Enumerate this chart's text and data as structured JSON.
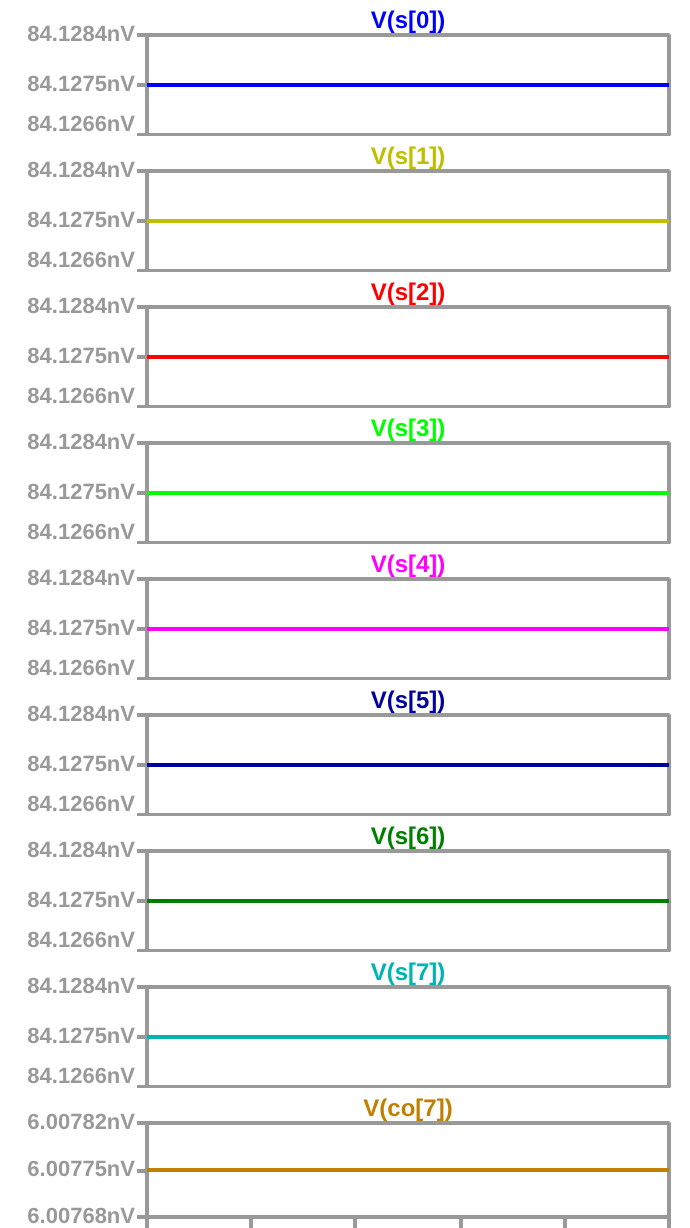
{
  "chart_data": [
    {
      "type": "line",
      "title": "V(s[0])",
      "categories": [
        null,
        null,
        null,
        null,
        null,
        null
      ],
      "ylim": [
        84.1266,
        84.1284
      ],
      "yticks": [
        {
          "value": 84.1266,
          "label": "84.1266nV"
        },
        {
          "value": 84.1275,
          "label": "84.1275nV"
        },
        {
          "value": 84.1284,
          "label": "84.1284nV"
        }
      ],
      "tick_labels": "y",
      "series": [
        {
          "color": "#0000ff",
          "values": [
            84.1275,
            84.1275,
            84.1275,
            84.1275,
            84.1275,
            84.1275
          ]
        }
      ]
    },
    {
      "type": "line",
      "title": "V(s[1])",
      "categories": [
        null,
        null,
        null,
        null,
        null,
        null
      ],
      "ylim": [
        84.1266,
        84.1284
      ],
      "yticks": [
        {
          "value": 84.1266,
          "label": "84.1266nV"
        },
        {
          "value": 84.1275,
          "label": "84.1275nV"
        },
        {
          "value": 84.1284,
          "label": "84.1284nV"
        }
      ],
      "tick_labels": "y",
      "series": [
        {
          "color": "#bfbf00",
          "values": [
            84.1275,
            84.1275,
            84.1275,
            84.1275,
            84.1275,
            84.1275
          ]
        }
      ]
    },
    {
      "type": "line",
      "title": "V(s[2])",
      "categories": [
        null,
        null,
        null,
        null,
        null,
        null
      ],
      "ylim": [
        84.1266,
        84.1284
      ],
      "yticks": [
        {
          "value": 84.1266,
          "label": "84.1266nV"
        },
        {
          "value": 84.1275,
          "label": "84.1275nV"
        },
        {
          "value": 84.1284,
          "label": "84.1284nV"
        }
      ],
      "tick_labels": "y",
      "series": [
        {
          "color": "#ff0000",
          "values": [
            84.1275,
            84.1275,
            84.1275,
            84.1275,
            84.1275,
            84.1275
          ]
        }
      ]
    },
    {
      "type": "line",
      "title": "V(s[3])",
      "categories": [
        null,
        null,
        null,
        null,
        null,
        null
      ],
      "ylim": [
        84.1266,
        84.1284
      ],
      "yticks": [
        {
          "value": 84.1266,
          "label": "84.1266nV"
        },
        {
          "value": 84.1275,
          "label": "84.1275nV"
        },
        {
          "value": 84.1284,
          "label": "84.1284nV"
        }
      ],
      "tick_labels": "y",
      "series": [
        {
          "color": "#00ff00",
          "values": [
            84.1275,
            84.1275,
            84.1275,
            84.1275,
            84.1275,
            84.1275
          ]
        }
      ]
    },
    {
      "type": "line",
      "title": "V(s[4])",
      "categories": [
        null,
        null,
        null,
        null,
        null,
        null
      ],
      "ylim": [
        84.1266,
        84.1284
      ],
      "yticks": [
        {
          "value": 84.1266,
          "label": "84.1266nV"
        },
        {
          "value": 84.1275,
          "label": "84.1275nV"
        },
        {
          "value": 84.1284,
          "label": "84.1284nV"
        }
      ],
      "tick_labels": "y",
      "series": [
        {
          "color": "#ff00ff",
          "values": [
            84.1275,
            84.1275,
            84.1275,
            84.1275,
            84.1275,
            84.1275
          ]
        }
      ]
    },
    {
      "type": "line",
      "title": "V(s[5])",
      "categories": [
        null,
        null,
        null,
        null,
        null,
        null
      ],
      "ylim": [
        84.1266,
        84.1284
      ],
      "yticks": [
        {
          "value": 84.1266,
          "label": "84.1266nV"
        },
        {
          "value": 84.1275,
          "label": "84.1275nV"
        },
        {
          "value": 84.1284,
          "label": "84.1284nV"
        }
      ],
      "tick_labels": "y",
      "series": [
        {
          "color": "#0000a0",
          "values": [
            84.1275,
            84.1275,
            84.1275,
            84.1275,
            84.1275,
            84.1275
          ]
        }
      ]
    },
    {
      "type": "line",
      "title": "V(s[6])",
      "categories": [
        null,
        null,
        null,
        null,
        null,
        null
      ],
      "ylim": [
        84.1266,
        84.1284
      ],
      "yticks": [
        {
          "value": 84.1266,
          "label": "84.1266nV"
        },
        {
          "value": 84.1275,
          "label": "84.1275nV"
        },
        {
          "value": 84.1284,
          "label": "84.1284nV"
        }
      ],
      "tick_labels": "y",
      "series": [
        {
          "color": "#008000",
          "values": [
            84.1275,
            84.1275,
            84.1275,
            84.1275,
            84.1275,
            84.1275
          ]
        }
      ]
    },
    {
      "type": "line",
      "title": "V(s[7])",
      "categories": [
        null,
        null,
        null,
        null,
        null,
        null
      ],
      "ylim": [
        84.1266,
        84.1284
      ],
      "yticks": [
        {
          "value": 84.1266,
          "label": "84.1266nV"
        },
        {
          "value": 84.1275,
          "label": "84.1275nV"
        },
        {
          "value": 84.1284,
          "label": "84.1284nV"
        }
      ],
      "tick_labels": "y",
      "series": [
        {
          "color": "#00b4b4",
          "values": [
            84.1275,
            84.1275,
            84.1275,
            84.1275,
            84.1275,
            84.1275
          ]
        }
      ]
    },
    {
      "type": "line",
      "title": "V(co[7])",
      "categories": [
        null,
        null,
        null,
        null,
        null,
        null
      ],
      "ylim": [
        6.00768,
        6.00782
      ],
      "yticks": [
        {
          "value": 6.00768,
          "label": "6.00768nV"
        },
        {
          "value": 6.00775,
          "label": "6.00775nV"
        },
        {
          "value": 6.00782,
          "label": "6.00782nV"
        }
      ],
      "tick_labels": "y",
      "series": [
        {
          "color": "#c08000",
          "values": [
            6.00775,
            6.00775,
            6.00775,
            6.00775,
            6.00775,
            6.00775
          ]
        }
      ]
    }
  ]
}
